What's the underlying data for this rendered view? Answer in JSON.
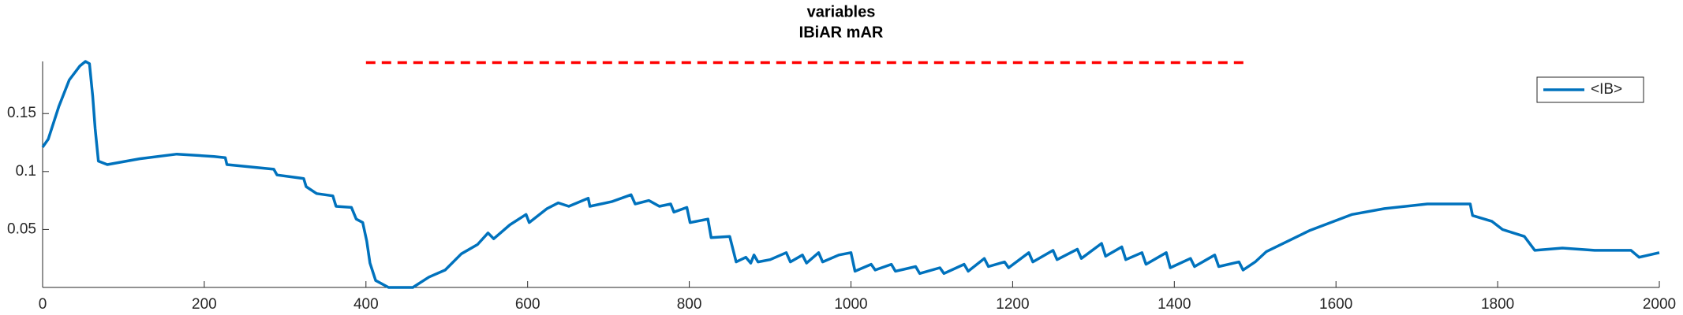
{
  "chart_data": {
    "type": "line",
    "title": "variables",
    "subtitle": "IBiAR mAR",
    "x": [
      0,
      7,
      20,
      33,
      46,
      53,
      58,
      62,
      65,
      69,
      80,
      120,
      166,
      212,
      226,
      228,
      286,
      290,
      323,
      326,
      339,
      359,
      363,
      382,
      388,
      396,
      401,
      405,
      412,
      428,
      458,
      478,
      498,
      518,
      538,
      551,
      558,
      578,
      598,
      602,
      624,
      638,
      651,
      675,
      677,
      704,
      728,
      733,
      750,
      763,
      777,
      781,
      797,
      801,
      823,
      827,
      850,
      858,
      870,
      876,
      880,
      885,
      900,
      920,
      925,
      940,
      945,
      960,
      965,
      985,
      1000,
      1005,
      1025,
      1030,
      1050,
      1055,
      1080,
      1085,
      1110,
      1115,
      1140,
      1145,
      1165,
      1170,
      1190,
      1195,
      1220,
      1225,
      1250,
      1255,
      1280,
      1285,
      1310,
      1315,
      1335,
      1340,
      1360,
      1365,
      1390,
      1395,
      1420,
      1425,
      1450,
      1455,
      1480,
      1485,
      1500,
      1514,
      1567,
      1620,
      1660,
      1713,
      1766,
      1769,
      1793,
      1806,
      1833,
      1846,
      1880,
      1920,
      1965,
      1975,
      2000
    ],
    "series": [
      {
        "name": "<IB>",
        "color": "#0072bd",
        "values": [
          0.121,
          0.128,
          0.156,
          0.179,
          0.191,
          0.195,
          0.193,
          0.165,
          0.137,
          0.109,
          0.106,
          0.111,
          0.115,
          0.113,
          0.112,
          0.106,
          0.102,
          0.097,
          0.094,
          0.087,
          0.081,
          0.079,
          0.07,
          0.069,
          0.059,
          0.056,
          0.04,
          0.021,
          0.006,
          0.0,
          0.0,
          0.009,
          0.015,
          0.029,
          0.037,
          0.047,
          0.042,
          0.054,
          0.063,
          0.056,
          0.068,
          0.073,
          0.07,
          0.077,
          0.07,
          0.074,
          0.08,
          0.072,
          0.075,
          0.07,
          0.072,
          0.065,
          0.069,
          0.056,
          0.059,
          0.043,
          0.044,
          0.022,
          0.026,
          0.021,
          0.028,
          0.022,
          0.024,
          0.03,
          0.022,
          0.028,
          0.021,
          0.03,
          0.022,
          0.028,
          0.03,
          0.014,
          0.02,
          0.015,
          0.02,
          0.014,
          0.018,
          0.012,
          0.017,
          0.012,
          0.02,
          0.014,
          0.025,
          0.018,
          0.022,
          0.017,
          0.03,
          0.022,
          0.032,
          0.024,
          0.033,
          0.025,
          0.038,
          0.027,
          0.035,
          0.024,
          0.03,
          0.02,
          0.03,
          0.017,
          0.025,
          0.018,
          0.028,
          0.018,
          0.022,
          0.015,
          0.022,
          0.031,
          0.049,
          0.063,
          0.068,
          0.072,
          0.072,
          0.062,
          0.057,
          0.05,
          0.044,
          0.032,
          0.034,
          0.032,
          0.032,
          0.026,
          0.03
        ]
      }
    ],
    "reference": {
      "x": [
        400,
        1490
      ],
      "value": 0.194,
      "color": "#ff0000",
      "style": "dashed"
    },
    "xlim": [
      0,
      2000
    ],
    "xticks": [
      0,
      200,
      400,
      600,
      800,
      1000,
      1200,
      1400,
      1600,
      1800,
      2000
    ],
    "ylim": [
      0,
      0.195
    ],
    "yticks": [
      0.05,
      0.1,
      0.15
    ],
    "legend": "northeast",
    "grid": false
  }
}
